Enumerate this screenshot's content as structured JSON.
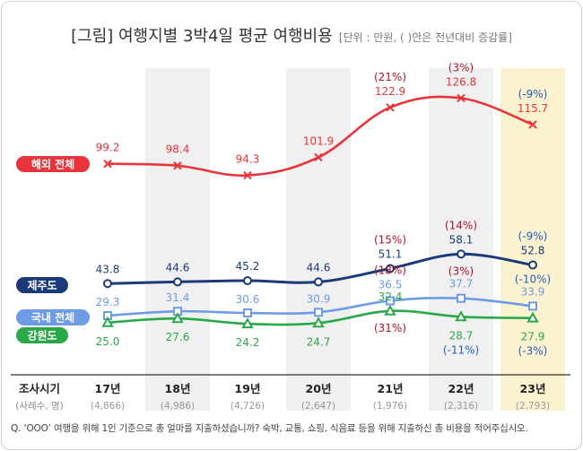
{
  "title": {
    "main": "[그림] 여행지별 3박4일 평균 여행비용",
    "sub": "[단위 : 만원, ( )안은 전년대비 증감률]"
  },
  "x_axis": {
    "header": "조사시기",
    "subheader": "(사례수, 명)"
  },
  "footnote": "Q. ‘OOO’ 여행을 위해 1인 기준으로 총 얼마를 지출하셨습니까? 숙박, 교통, 쇼핑, 식음료 등을 위해 지출하신 총 비용을 적어주십시오.",
  "colors": {
    "overseas": "#e8353b",
    "jeju": "#1b3a78",
    "domestic": "#6e9be6",
    "gangwon": "#2aa84a",
    "shade_even": "#f0f0f0",
    "shade_last": "#fdf2cf"
  },
  "chart_data": {
    "type": "line",
    "categories": [
      "17년",
      "18년",
      "19년",
      "20년",
      "21년",
      "22년",
      "23년"
    ],
    "sample_sizes": [
      "(4,866)",
      "(4,986)",
      "(4,726)",
      "(2,647)",
      "(1,976)",
      "(2,316)",
      "(2,793)"
    ],
    "ylabel": "만원",
    "series": [
      {
        "name": "해외 전체",
        "key": "overseas",
        "marker": "x",
        "values": [
          99.2,
          98.4,
          94.3,
          101.9,
          122.9,
          126.8,
          115.7
        ],
        "labels": [
          "99.2",
          "98.4",
          "94.3",
          "101.9",
          "122.9",
          "126.8",
          "115.7"
        ],
        "changes": [
          "",
          "",
          "",
          "",
          "(21%)",
          "(3%)",
          "(-9%)"
        ]
      },
      {
        "name": "제주도",
        "key": "jeju",
        "marker": "circle",
        "values": [
          43.8,
          44.6,
          45.2,
          44.6,
          51.1,
          58.1,
          52.8
        ],
        "labels": [
          "43.8",
          "44.6",
          "45.2",
          "44.6",
          "51.1",
          "58.1",
          "52.8"
        ],
        "changes": [
          "",
          "",
          "",
          "",
          "(15%)",
          "(14%)",
          "(-9%)"
        ]
      },
      {
        "name": "국내 전체",
        "key": "domestic",
        "marker": "square",
        "values": [
          29.3,
          31.4,
          30.6,
          30.9,
          36.5,
          37.7,
          33.9
        ],
        "labels": [
          "29.3",
          "31.4",
          "30.6",
          "30.9",
          "36.5",
          "37.7",
          "33.9"
        ],
        "changes": [
          "",
          "",
          "",
          "",
          "(18%)",
          "(3%)",
          "(-10%)"
        ]
      },
      {
        "name": "강원도",
        "key": "gangwon",
        "marker": "triangle",
        "values": [
          25.0,
          27.6,
          24.2,
          24.7,
          32.4,
          28.7,
          27.9
        ],
        "labels": [
          "25.0",
          "27.6",
          "24.2",
          "24.7",
          "32.4",
          "28.7",
          "27.9"
        ],
        "changes": [
          "",
          "",
          "",
          "",
          "(31%)",
          "(-11%)",
          "(-3%)"
        ]
      }
    ]
  }
}
